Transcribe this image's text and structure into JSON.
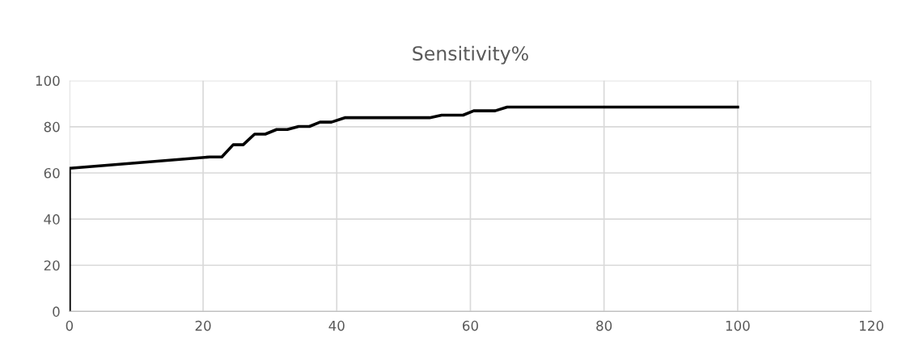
{
  "chart_data": {
    "type": "line",
    "title": "Sensitivity%",
    "series": [
      {
        "color": "#000000",
        "x": [
          0,
          0,
          21.0,
          22.8,
          24.5,
          26.0,
          27.7,
          29.3,
          31.0,
          32.6,
          34.3,
          35.9,
          37.5,
          39.2,
          41.2,
          53.9,
          55.7,
          58.9,
          60.5,
          63.7,
          65.5,
          100
        ],
        "values": [
          0,
          62.0,
          66.9,
          66.9,
          72.2,
          72.2,
          76.8,
          76.8,
          78.8,
          78.8,
          80.1,
          80.1,
          82.0,
          82.0,
          83.9,
          83.9,
          85.0,
          85.0,
          86.9,
          86.9,
          88.5,
          88.5
        ]
      }
    ],
    "xlim": [
      0,
      120
    ],
    "xticks": [
      0,
      20,
      40,
      60,
      80,
      100,
      120
    ],
    "ylim": [
      0,
      100
    ],
    "yticks": [
      0,
      20,
      40,
      60,
      80,
      100
    ],
    "grid": true,
    "line_style": "solid",
    "marker": "none"
  }
}
